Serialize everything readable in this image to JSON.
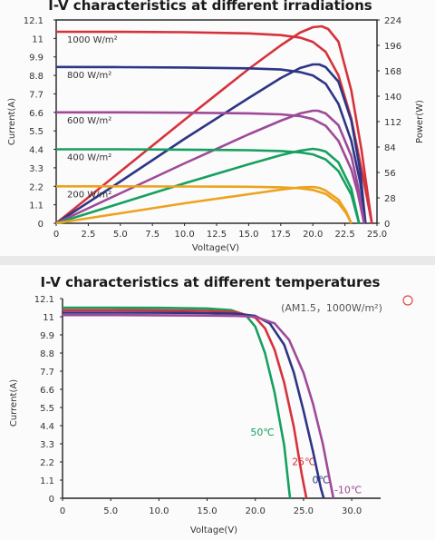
{
  "chart_data": [
    {
      "type": "line",
      "title": "I-V characteristics at different irradiations",
      "xlabel": "Voltage(V)",
      "ylabel": "Current(A)",
      "y2label": "Power(W)",
      "xlim": [
        0,
        25
      ],
      "ylim": [
        0,
        12.1
      ],
      "y2lim": [
        0,
        224
      ],
      "xticks": [
        "0",
        "2.5",
        "5.0",
        "7.5",
        "10.0",
        "12.5",
        "15.0",
        "17.5",
        "20.0",
        "22.5",
        "25.0"
      ],
      "yticks": [
        "0",
        "1.1",
        "2.2",
        "3.3",
        "4.4",
        "5.5",
        "6.6",
        "7.7",
        "8.8",
        "9.9",
        "11",
        "12.1"
      ],
      "y2ticks": [
        "0",
        "28",
        "56",
        "84",
        "112",
        "140",
        "168",
        "196",
        "224"
      ],
      "series": [
        {
          "name": "1000 W/m²",
          "color": "#d6323c",
          "iv": [
            [
              0,
              11.4
            ],
            [
              5,
              11.39
            ],
            [
              10,
              11.37
            ],
            [
              15,
              11.3
            ],
            [
              17.5,
              11.2
            ],
            [
              19,
              11.05
            ],
            [
              20,
              10.8
            ],
            [
              21,
              10.2
            ],
            [
              22,
              8.8
            ],
            [
              23,
              6.2
            ],
            [
              23.8,
              3.2
            ],
            [
              24.4,
              0.8
            ],
            [
              24.6,
              0
            ]
          ],
          "pv": [
            [
              0,
              0
            ],
            [
              5,
              57
            ],
            [
              10,
              114
            ],
            [
              15,
              170
            ],
            [
              17.5,
              196
            ],
            [
              19,
              210
            ],
            [
              20,
              216
            ],
            [
              20.7,
              217
            ],
            [
              21.2,
              214
            ],
            [
              22,
              200
            ],
            [
              23,
              146
            ],
            [
              23.8,
              80
            ],
            [
              24.6,
              0
            ]
          ]
        },
        {
          "name": "800 W/m²",
          "color": "#2e3585",
          "iv": [
            [
              0,
              9.3
            ],
            [
              5,
              9.29
            ],
            [
              10,
              9.27
            ],
            [
              15,
              9.22
            ],
            [
              17.5,
              9.15
            ],
            [
              19,
              9.0
            ],
            [
              20,
              8.8
            ],
            [
              21,
              8.3
            ],
            [
              22,
              7.1
            ],
            [
              23,
              4.9
            ],
            [
              23.7,
              2.4
            ],
            [
              24.1,
              0
            ]
          ],
          "pv": [
            [
              0,
              0
            ],
            [
              5,
              46
            ],
            [
              10,
              93
            ],
            [
              15,
              138
            ],
            [
              17.5,
              160
            ],
            [
              19,
              171
            ],
            [
              20,
              175
            ],
            [
              20.5,
              175
            ],
            [
              21,
              172
            ],
            [
              22,
              156
            ],
            [
              23,
              113
            ],
            [
              23.7,
              57
            ],
            [
              24.1,
              0
            ]
          ]
        },
        {
          "name": "600 W/m²",
          "color": "#9e4a98",
          "iv": [
            [
              0,
              6.6
            ],
            [
              5,
              6.6
            ],
            [
              10,
              6.58
            ],
            [
              15,
              6.54
            ],
            [
              17.5,
              6.48
            ],
            [
              19,
              6.38
            ],
            [
              20,
              6.2
            ],
            [
              21,
              5.8
            ],
            [
              22,
              4.9
            ],
            [
              23,
              3.2
            ],
            [
              23.5,
              1.8
            ],
            [
              24,
              0
            ]
          ],
          "pv": [
            [
              0,
              0
            ],
            [
              5,
              33
            ],
            [
              10,
              66
            ],
            [
              15,
              98
            ],
            [
              17.5,
              113
            ],
            [
              19,
              121
            ],
            [
              20,
              124
            ],
            [
              20.4,
              124
            ],
            [
              21,
              121
            ],
            [
              22,
              108
            ],
            [
              23,
              74
            ],
            [
              23.5,
              42
            ],
            [
              24,
              0
            ]
          ]
        },
        {
          "name": "400 W/m²",
          "color": "#16a060",
          "iv": [
            [
              0,
              4.4
            ],
            [
              5,
              4.4
            ],
            [
              10,
              4.38
            ],
            [
              15,
              4.35
            ],
            [
              17.5,
              4.3
            ],
            [
              19,
              4.22
            ],
            [
              20,
              4.1
            ],
            [
              21,
              3.8
            ],
            [
              22,
              3.1
            ],
            [
              23,
              1.7
            ],
            [
              23.6,
              0
            ]
          ],
          "pv": [
            [
              0,
              0
            ],
            [
              5,
              22
            ],
            [
              10,
              44
            ],
            [
              15,
              65
            ],
            [
              17.5,
              75
            ],
            [
              19,
              80
            ],
            [
              20,
              82
            ],
            [
              20.5,
              81
            ],
            [
              21,
              79
            ],
            [
              22,
              67
            ],
            [
              23,
              38
            ],
            [
              23.6,
              0
            ]
          ]
        },
        {
          "name": "200 W/m²",
          "color": "#eca31e",
          "iv": [
            [
              0,
              2.2
            ],
            [
              5,
              2.2
            ],
            [
              10,
              2.19
            ],
            [
              15,
              2.17
            ],
            [
              17.5,
              2.14
            ],
            [
              19,
              2.08
            ],
            [
              20,
              1.98
            ],
            [
              21,
              1.75
            ],
            [
              22,
              1.2
            ],
            [
              22.6,
              0.6
            ],
            [
              23,
              0
            ]
          ],
          "pv": [
            [
              0,
              0
            ],
            [
              5,
              11
            ],
            [
              10,
              22
            ],
            [
              15,
              32
            ],
            [
              17.5,
              37
            ],
            [
              19,
              39.5
            ],
            [
              20,
              40
            ],
            [
              20.5,
              39
            ],
            [
              21,
              36
            ],
            [
              22,
              26
            ],
            [
              22.6,
              13
            ],
            [
              23,
              0
            ]
          ]
        }
      ],
      "legend_position": "inline labels above curves"
    },
    {
      "type": "line",
      "title": "I-V characteristics at different temperatures",
      "subtitle": "(AM1.5，1000W/m²)",
      "xlabel": "Voltage(V)",
      "ylabel": "Current(A)",
      "xlim": [
        0,
        33
      ],
      "ylim": [
        0,
        12.1
      ],
      "xticks": [
        "0",
        "5.0",
        "10.0",
        "15.0",
        "20.0",
        "25.0",
        "30.0"
      ],
      "yticks": [
        "0",
        "1.1",
        "2.2",
        "3.3",
        "4.4",
        "5.5",
        "6.6",
        "7.7",
        "8.8",
        "9.9",
        "11",
        "12.1"
      ],
      "series": [
        {
          "name": "50℃",
          "color": "#16a060",
          "iv": [
            [
              0,
              11.55
            ],
            [
              5,
              11.55
            ],
            [
              10,
              11.54
            ],
            [
              15,
              11.5
            ],
            [
              17.5,
              11.4
            ],
            [
              19,
              11.1
            ],
            [
              20,
              10.4
            ],
            [
              21,
              8.8
            ],
            [
              22,
              6.4
            ],
            [
              23,
              3.2
            ],
            [
              23.6,
              0
            ]
          ]
        },
        {
          "name": "25℃",
          "color": "#d6323c",
          "iv": [
            [
              0,
              11.4
            ],
            [
              5,
              11.4
            ],
            [
              10,
              11.39
            ],
            [
              15,
              11.36
            ],
            [
              18,
              11.28
            ],
            [
              20,
              10.95
            ],
            [
              21,
              10.3
            ],
            [
              22,
              9.0
            ],
            [
              23,
              7.0
            ],
            [
              24,
              4.3
            ],
            [
              24.8,
              1.5
            ],
            [
              25.3,
              0
            ]
          ]
        },
        {
          "name": "0℃",
          "color": "#2e3585",
          "iv": [
            [
              0,
              11.25
            ],
            [
              5,
              11.25
            ],
            [
              10,
              11.24
            ],
            [
              15,
              11.22
            ],
            [
              18,
              11.18
            ],
            [
              20,
              11.05
            ],
            [
              21.5,
              10.6
            ],
            [
              23,
              9.3
            ],
            [
              24,
              7.6
            ],
            [
              25,
              5.3
            ],
            [
              26,
              2.8
            ],
            [
              26.8,
              0.6
            ],
            [
              27.1,
              0
            ]
          ]
        },
        {
          "name": "-10℃",
          "color": "#9e4a98",
          "iv": [
            [
              0,
              11.1
            ],
            [
              5,
              11.1
            ],
            [
              10,
              11.09
            ],
            [
              15,
              11.07
            ],
            [
              18,
              11.05
            ],
            [
              20,
              11.0
            ],
            [
              22,
              10.6
            ],
            [
              23.5,
              9.6
            ],
            [
              25,
              7.6
            ],
            [
              26,
              5.7
            ],
            [
              27,
              3.3
            ],
            [
              27.7,
              1.2
            ],
            [
              28.1,
              0
            ]
          ]
        }
      ],
      "legend_position": "inline labels next to curves"
    }
  ]
}
